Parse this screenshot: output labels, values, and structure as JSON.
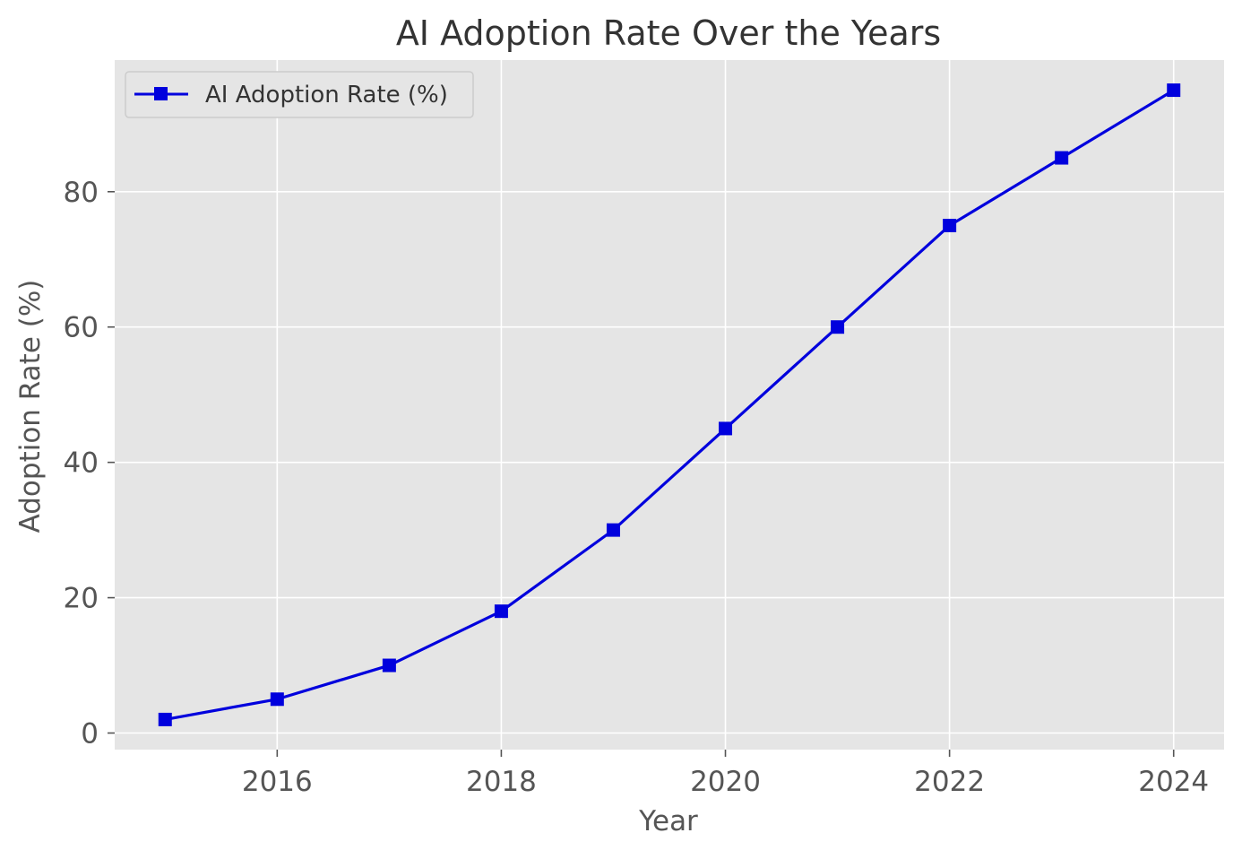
{
  "chart_data": {
    "type": "line",
    "title": "AI Adoption Rate Over the Years",
    "xlabel": "Year",
    "ylabel": "Adoption Rate (%)",
    "x": [
      2015,
      2016,
      2017,
      2018,
      2019,
      2020,
      2021,
      2022,
      2023,
      2024
    ],
    "series": [
      {
        "name": "AI Adoption Rate (%)",
        "values": [
          2,
          5,
          10,
          18,
          30,
          45,
          60,
          75,
          85,
          95
        ],
        "color": "#0000dd",
        "marker": "square"
      }
    ],
    "xlim": [
      2014.55,
      2024.45
    ],
    "ylim": [
      -2.45,
      99.45
    ],
    "xticks": [
      2016,
      2018,
      2020,
      2022,
      2024
    ],
    "yticks": [
      0,
      20,
      40,
      60,
      80
    ],
    "grid": true,
    "legend_position": "upper-left",
    "style": {
      "axes_background": "#e5e5e5",
      "grid_color": "#ffffff",
      "text_color": "#333333",
      "tick_label_color": "#555555"
    }
  }
}
